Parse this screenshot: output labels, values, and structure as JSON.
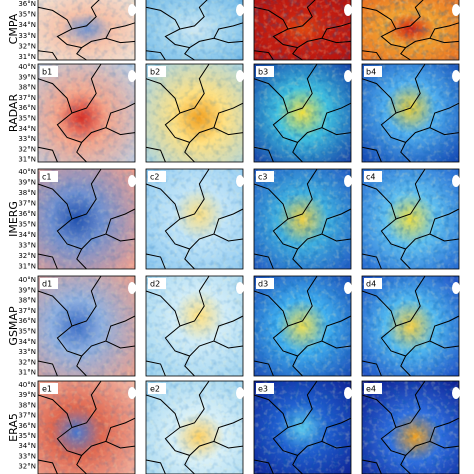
{
  "rows": [
    {
      "label": "CMPA",
      "panels": [],
      "lat_ticks": [
        "36°N",
        "35°N",
        "34°N",
        "33°N",
        "32°N",
        "31°N"
      ]
    },
    {
      "label": "RADAR",
      "panels": [
        "b1",
        "b2",
        "b3",
        "b4"
      ],
      "lat_ticks": [
        "40°N",
        "39°N",
        "38°N",
        "37°N",
        "36°N",
        "35°N",
        "34°N",
        "33°N",
        "32°N",
        "31°N"
      ]
    },
    {
      "label": "IMERG",
      "panels": [
        "c1",
        "c2",
        "c3",
        "c4"
      ],
      "lat_ticks": [
        "40°N",
        "39°N",
        "38°N",
        "37°N",
        "36°N",
        "35°N",
        "34°N",
        "33°N",
        "32°N",
        "31°N"
      ]
    },
    {
      "label": "GSMAP",
      "panels": [
        "d1",
        "d2",
        "d3",
        "d4"
      ],
      "lat_ticks": [
        "40°N",
        "39°N",
        "38°N",
        "37°N",
        "36°N",
        "35°N",
        "34°N",
        "33°N",
        "32°N",
        "31°N"
      ]
    },
    {
      "label": "ERA5",
      "panels": [
        "e1",
        "e2",
        "e3",
        "e4"
      ],
      "lat_ticks": [
        "40°N",
        "39°N",
        "38°N",
        "37°N",
        "36°N",
        "35°N",
        "34°N",
        "33°N",
        "32°N"
      ]
    }
  ]
}
